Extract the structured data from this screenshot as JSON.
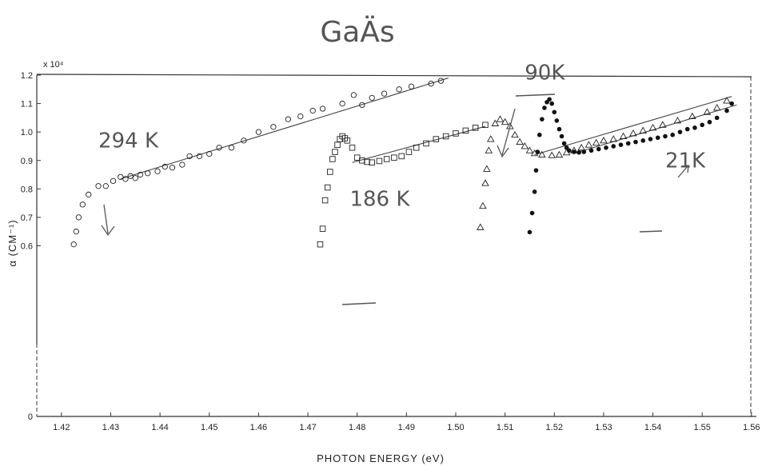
{
  "chart_data": {
    "type": "scatter",
    "title": "GaÄs",
    "xlabel": "PHOTON ENERGY (eV)",
    "ylabel": "α (CM⁻¹)",
    "y_multiplier": "x 10⁴",
    "xlim": [
      1.415,
      1.561
    ],
    "ylim": [
      0,
      1.2
    ],
    "x_ticks": [
      "1.42",
      "1.43",
      "1.44",
      "1.45",
      "1.46",
      "1.47",
      "1.48",
      "1.49",
      "1.50",
      "1.51",
      "1.52",
      "1.53",
      "1.54",
      "1.55",
      "1.56"
    ],
    "y_ticks": [
      "0",
      "0.6",
      "0.7",
      "0.8",
      "0.9",
      "1.0",
      "1.1",
      "1.2"
    ],
    "grid": false,
    "series": [
      {
        "name": "294 K",
        "marker": "circle-open",
        "x": [
          1.4225,
          1.423,
          1.4235,
          1.4243,
          1.4255,
          1.4275,
          1.429,
          1.4305,
          1.432,
          1.433,
          1.434,
          1.435,
          1.436,
          1.4375,
          1.4395,
          1.441,
          1.4425,
          1.4445,
          1.446,
          1.448,
          1.45,
          1.452,
          1.4545,
          1.457,
          1.46,
          1.463,
          1.466,
          1.4685,
          1.471,
          1.473,
          1.477,
          1.4793,
          1.481,
          1.483,
          1.4855,
          1.4885,
          1.491,
          1.495,
          1.497
        ],
        "y": [
          0.605,
          0.65,
          0.7,
          0.745,
          0.78,
          0.81,
          0.81,
          0.828,
          0.842,
          0.835,
          0.845,
          0.838,
          0.85,
          0.855,
          0.862,
          0.878,
          0.875,
          0.885,
          0.915,
          0.915,
          0.923,
          0.945,
          0.945,
          0.97,
          1.0,
          1.018,
          1.045,
          1.055,
          1.075,
          1.082,
          1.1,
          1.13,
          1.095,
          1.12,
          1.135,
          1.15,
          1.16,
          1.17,
          1.18
        ]
      },
      {
        "name": "186 K",
        "marker": "square-open",
        "x": [
          1.4725,
          1.473,
          1.4735,
          1.474,
          1.4745,
          1.475,
          1.4755,
          1.476,
          1.4765,
          1.477,
          1.4775,
          1.478,
          1.479,
          1.48,
          1.481,
          1.482,
          1.483,
          1.4845,
          1.486,
          1.4875,
          1.489,
          1.4905,
          1.492,
          1.494,
          1.496,
          1.498,
          1.5,
          1.502,
          1.504,
          1.506
        ],
        "y": [
          0.605,
          0.66,
          0.76,
          0.805,
          0.86,
          0.905,
          0.93,
          0.955,
          0.975,
          0.985,
          0.978,
          0.97,
          0.945,
          0.91,
          0.9,
          0.895,
          0.893,
          0.898,
          0.905,
          0.91,
          0.915,
          0.93,
          0.945,
          0.96,
          0.975,
          0.985,
          0.995,
          1.005,
          1.015,
          1.025
        ]
      },
      {
        "name": "90 K",
        "marker": "triangle-open",
        "x": [
          1.505,
          1.5055,
          1.506,
          1.5063,
          1.5067,
          1.5071,
          1.508,
          1.509,
          1.51,
          1.511,
          1.512,
          1.513,
          1.514,
          1.515,
          1.516,
          1.5175,
          1.5195,
          1.521,
          1.5225,
          1.524,
          1.5255,
          1.527,
          1.5285,
          1.53,
          1.532,
          1.534,
          1.536,
          1.538,
          1.54,
          1.542,
          1.545,
          1.548,
          1.551,
          1.553,
          1.555
        ],
        "y": [
          0.665,
          0.74,
          0.82,
          0.87,
          0.935,
          0.975,
          1.03,
          1.045,
          1.035,
          1.02,
          0.99,
          0.965,
          0.95,
          0.935,
          0.925,
          0.92,
          0.918,
          0.92,
          0.928,
          0.935,
          0.945,
          0.955,
          0.962,
          0.97,
          0.975,
          0.985,
          0.995,
          1.005,
          1.015,
          1.025,
          1.04,
          1.055,
          1.07,
          1.085,
          1.11
        ]
      },
      {
        "name": "21 K",
        "marker": "circle-filled",
        "x": [
          1.515,
          1.5155,
          1.516,
          1.5163,
          1.5166,
          1.517,
          1.5175,
          1.518,
          1.5185,
          1.519,
          1.5195,
          1.52,
          1.5205,
          1.521,
          1.5215,
          1.522,
          1.5225,
          1.523,
          1.524,
          1.525,
          1.526,
          1.5275,
          1.529,
          1.5305,
          1.532,
          1.5335,
          1.535,
          1.5365,
          1.538,
          1.5395,
          1.541,
          1.5425,
          1.544,
          1.5455,
          1.547,
          1.5485,
          1.55,
          1.5515,
          1.553,
          1.555,
          1.556
        ],
        "y": [
          0.648,
          0.715,
          0.79,
          0.865,
          0.93,
          0.99,
          1.045,
          1.085,
          1.105,
          1.115,
          1.1,
          1.07,
          1.04,
          1.01,
          0.985,
          0.96,
          0.945,
          0.935,
          0.93,
          0.928,
          0.93,
          0.935,
          0.94,
          0.945,
          0.95,
          0.955,
          0.96,
          0.965,
          0.97,
          0.975,
          0.98,
          0.985,
          0.99,
          1.0,
          1.01,
          1.015,
          1.025,
          1.035,
          1.05,
          1.075,
          1.1
        ]
      }
    ],
    "fit_lines": [
      {
        "name": "294 K fit",
        "x": [
          1.432,
          1.4985
        ],
        "y": [
          0.835,
          1.19
        ]
      },
      {
        "name": "186 K fit",
        "x": [
          1.479,
          1.506
        ],
        "y": [
          0.893,
          1.02
        ]
      },
      {
        "name": "90 K fit",
        "x": [
          1.516,
          1.556
        ],
        "y": [
          0.92,
          1.125
        ]
      },
      {
        "name": "21 K fit",
        "x": [
          1.524,
          1.557
        ],
        "y": [
          0.925,
          1.095
        ]
      }
    ],
    "annotations": [
      {
        "text": "294 K",
        "x": 1.4275,
        "y": 0.945
      },
      {
        "text": "186 K",
        "x": 1.4785,
        "y": 0.74
      },
      {
        "text": "90K",
        "x": 1.514,
        "y": 1.185
      },
      {
        "text": "21K",
        "x": 1.5425,
        "y": 0.875
      }
    ]
  }
}
